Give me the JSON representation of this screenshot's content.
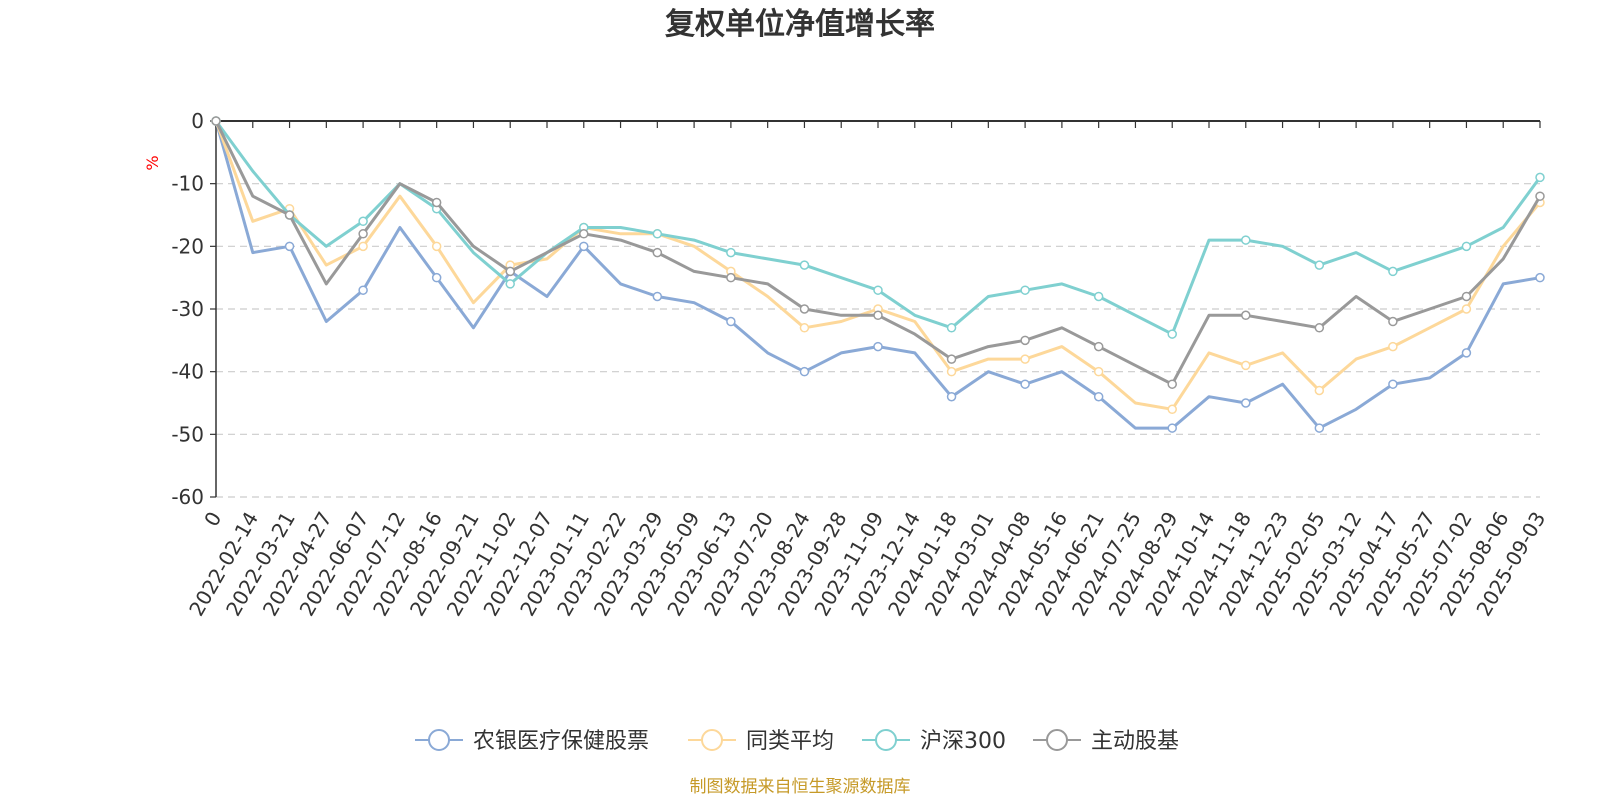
{
  "chart_data": {
    "type": "line",
    "title": "复权单位净值增长率",
    "ylabel": "%",
    "xlabel": "",
    "ylim": [
      -60,
      0
    ],
    "yticks": [
      0,
      -10,
      -20,
      -30,
      -40,
      -50,
      -60
    ],
    "grid": true,
    "legend_position": "bottom",
    "source": "制图数据来自恒生聚源数据库",
    "categories": [
      "0",
      "2022-02-14",
      "2022-03-21",
      "2022-04-27",
      "2022-06-07",
      "2022-07-12",
      "2022-08-16",
      "2022-09-21",
      "2022-11-02",
      "2022-12-07",
      "2023-01-11",
      "2023-02-22",
      "2023-03-29",
      "2023-05-09",
      "2023-06-13",
      "2023-07-20",
      "2023-08-24",
      "2023-09-28",
      "2023-11-09",
      "2023-12-14",
      "2024-01-18",
      "2024-03-01",
      "2024-04-08",
      "2024-05-16",
      "2024-06-21",
      "2024-07-25",
      "2024-08-29",
      "2024-10-14",
      "2024-11-18",
      "2024-12-23",
      "2025-02-05",
      "2025-03-12",
      "2025-04-17",
      "2025-05-27",
      "2025-07-02",
      "2025-08-06",
      "2025-09-03"
    ],
    "series": [
      {
        "name": "农银医疗保健股票",
        "color": "#8aa9d6",
        "values": [
          0,
          -21,
          -20,
          -32,
          -27,
          -17,
          -25,
          -33,
          -24,
          -28,
          -20,
          -26,
          -28,
          -29,
          -32,
          -37,
          -40,
          -37,
          -36,
          -37,
          -44,
          -40,
          -42,
          -40,
          -44,
          -49,
          -49,
          -44,
          -45,
          -42,
          -49,
          -46,
          -42,
          -41,
          -37,
          -26,
          -25
        ]
      },
      {
        "name": "同类平均",
        "color": "#fdd89a",
        "values": [
          0,
          -16,
          -14,
          -23,
          -20,
          -12,
          -20,
          -29,
          -23,
          -22,
          -17,
          -18,
          -18,
          -20,
          -24,
          -28,
          -33,
          -32,
          -30,
          -32,
          -40,
          -38,
          -38,
          -36,
          -40,
          -45,
          -46,
          -37,
          -39,
          -37,
          -43,
          -38,
          -36,
          -33,
          -30,
          -20,
          -13
        ]
      },
      {
        "name": "沪深300",
        "color": "#7fd0d0",
        "values": [
          0,
          -8,
          -15,
          -20,
          -16,
          -10,
          -14,
          -21,
          -26,
          -21,
          -17,
          -17,
          -18,
          -19,
          -21,
          -22,
          -23,
          -25,
          -27,
          -31,
          -33,
          -28,
          -27,
          -26,
          -28,
          -31,
          -34,
          -19,
          -19,
          -20,
          -23,
          -21,
          -24,
          -22,
          -20,
          -17,
          -9
        ]
      },
      {
        "name": "主动股基",
        "color": "#999999",
        "values": [
          0,
          -12,
          -15,
          -26,
          -18,
          -10,
          -13,
          -20,
          -24,
          -21,
          -18,
          -19,
          -21,
          -24,
          -25,
          -26,
          -30,
          -31,
          -31,
          -34,
          -38,
          -36,
          -35,
          -33,
          -36,
          -39,
          -42,
          -31,
          -31,
          -32,
          -33,
          -28,
          -32,
          -30,
          -28,
          -22,
          -12
        ]
      }
    ]
  }
}
